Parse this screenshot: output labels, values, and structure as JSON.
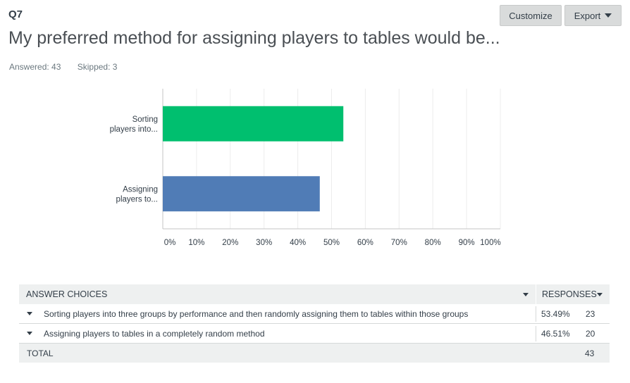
{
  "question": {
    "number": "Q7",
    "title": "My preferred method for assigning players to tables would be...",
    "answered": "Answered: 43",
    "skipped": "Skipped: 3"
  },
  "toolbar": {
    "customize_label": "Customize",
    "export_label": "Export"
  },
  "chart_data": {
    "type": "bar",
    "orientation": "horizontal",
    "categories": [
      "Sorting players into...",
      "Assigning players to..."
    ],
    "category_lines": [
      [
        "Sorting",
        "players into..."
      ],
      [
        "Assigning",
        "players to..."
      ]
    ],
    "values": [
      53.49,
      46.51
    ],
    "colors": [
      "#00bf6f",
      "#507cb6"
    ],
    "xlim": [
      0,
      100
    ],
    "xticks": [
      "0%",
      "10%",
      "20%",
      "30%",
      "40%",
      "50%",
      "60%",
      "70%",
      "80%",
      "90%",
      "100%"
    ],
    "grid": true,
    "title": "",
    "xlabel": "",
    "ylabel": ""
  },
  "table": {
    "header_answer": "ANSWER CHOICES",
    "header_responses": "RESPONSES",
    "rows": [
      {
        "label": "Sorting players into three groups by performance and then randomly assigning them to tables within those groups",
        "percent": "53.49%",
        "count": "23"
      },
      {
        "label": "Assigning players to tables in a completely random method",
        "percent": "46.51%",
        "count": "20"
      }
    ],
    "total_label": "TOTAL",
    "total_count": "43"
  }
}
